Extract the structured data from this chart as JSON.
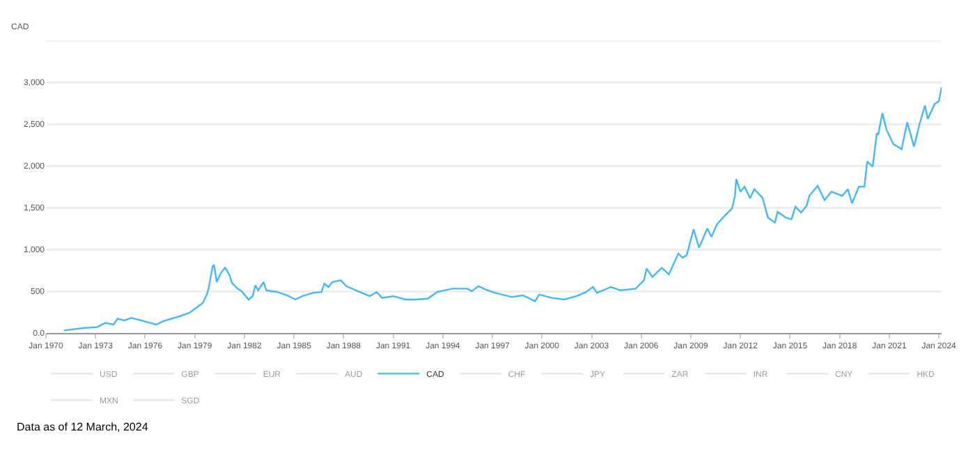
{
  "chart_data": {
    "type": "line",
    "ylabel": "CAD",
    "annotations": [
      "Data as of 12 March, 2024"
    ],
    "xlim": [
      "1970-01",
      "2024-03"
    ],
    "xticks": [
      {
        "value": "1970-01",
        "label": "Jan 1970"
      },
      {
        "value": "1973-01",
        "label": "Jan 1973"
      },
      {
        "value": "1976-01",
        "label": "Jan 1976"
      },
      {
        "value": "1979-01",
        "label": "Jan 1979"
      },
      {
        "value": "1982-01",
        "label": "Jan 1982"
      },
      {
        "value": "1985-01",
        "label": "Jan 1985"
      },
      {
        "value": "1988-01",
        "label": "Jan 1988"
      },
      {
        "value": "1991-01",
        "label": "Jan 1991"
      },
      {
        "value": "1994-01",
        "label": "Jan 1994"
      },
      {
        "value": "1997-01",
        "label": "Jan 1997"
      },
      {
        "value": "2000-01",
        "label": "Jan 2000"
      },
      {
        "value": "2003-01",
        "label": "Jan 2003"
      },
      {
        "value": "2006-01",
        "label": "Jan 2006"
      },
      {
        "value": "2009-01",
        "label": "Jan 2009"
      },
      {
        "value": "2012-01",
        "label": "Jan 2012"
      },
      {
        "value": "2015-01",
        "label": "Jan 2015"
      },
      {
        "value": "2018-01",
        "label": "Jan 2018"
      },
      {
        "value": "2021-01",
        "label": "Jan 2021"
      },
      {
        "value": "2024-01",
        "label": "Jan 2024"
      }
    ],
    "ylim": [
      0,
      3500
    ],
    "yticks": [
      {
        "value": 0,
        "label": "0.0"
      },
      500,
      {
        "value": 1000,
        "label": "1,000"
      },
      {
        "value": 1500,
        "label": "1,500"
      },
      {
        "value": 2000,
        "label": "2,000"
      },
      {
        "value": 2500,
        "label": "2,500"
      },
      {
        "value": 3000,
        "label": "3,000"
      },
      {
        "value": 3500,
        "label": null
      }
    ],
    "grid": "y",
    "legend": "bottom",
    "marker": "none",
    "line_style": "solid",
    "series": [
      {
        "name": "USD",
        "color": "#cccccc"
      },
      {
        "name": "GBP",
        "color": "#cccccc"
      },
      {
        "name": "EUR",
        "color": "#cccccc"
      },
      {
        "name": "AUD",
        "color": "#cccccc"
      },
      {
        "name": "CAD",
        "color": "#45b8f5",
        "x": [
          "1971-02",
          "1972-05",
          "1973-02",
          "1973-08",
          "1974-02",
          "1974-05",
          "1974-10",
          "1975-03",
          "1975-08",
          "1976-09",
          "1977-02",
          "1978-02",
          "1978-09",
          "1979-02",
          "1979-07",
          "1979-10",
          "1979-11",
          "1980-02",
          "1980-03",
          "1980-05",
          "1980-08",
          "1980-11",
          "1981-02",
          "1981-04",
          "1981-08",
          "1981-11",
          "1982-04",
          "1982-07",
          "1982-09",
          "1982-11",
          "1983-03",
          "1983-05",
          "1984-01",
          "1984-08",
          "1985-02",
          "1985-07",
          "1986-03",
          "1986-09",
          "1986-11",
          "1987-02",
          "1987-05",
          "1987-11",
          "1988-03",
          "1988-10",
          "1989-08",
          "1990-01",
          "1990-05",
          "1991-01",
          "1991-10",
          "1992-05",
          "1993-02",
          "1993-09",
          "1994-02",
          "1994-08",
          "1995-07",
          "1995-10",
          "1996-03",
          "1996-08",
          "1997-03",
          "1998-03",
          "1998-11",
          "1999-08",
          "1999-11",
          "2000-08",
          "2001-05",
          "2002-02",
          "2002-09",
          "2003-02",
          "2003-05",
          "2004-03",
          "2004-10",
          "2005-09",
          "2006-03",
          "2006-05",
          "2006-09",
          "2007-04",
          "2007-09",
          "2008-04",
          "2008-07",
          "2008-10",
          "2009-03",
          "2009-07",
          "2010-01",
          "2010-04",
          "2010-08",
          "2011-02",
          "2011-07",
          "2011-09",
          "2011-10",
          "2012-01",
          "2012-04",
          "2012-08",
          "2012-11",
          "2013-05",
          "2013-09",
          "2014-02",
          "2014-04",
          "2014-10",
          "2015-02",
          "2015-05",
          "2015-09",
          "2016-01",
          "2016-03",
          "2016-09",
          "2017-02",
          "2017-07",
          "2018-03",
          "2018-07",
          "2018-10",
          "2019-03",
          "2019-07",
          "2019-09",
          "2020-01",
          "2020-04",
          "2020-05",
          "2020-08",
          "2020-11",
          "2021-04",
          "2021-10",
          "2022-02",
          "2022-07",
          "2022-11",
          "2023-03",
          "2023-05",
          "2023-10",
          "2024-01",
          "2024-03"
        ],
        "values": [
          30,
          60,
          70,
          120,
          100,
          170,
          150,
          180,
          160,
          100,
          140,
          200,
          240,
          300,
          360,
          470,
          530,
          800,
          810,
          610,
          720,
          780,
          700,
          600,
          530,
          500,
          400,
          440,
          570,
          510,
          610,
          510,
          490,
          450,
          400,
          440,
          480,
          490,
          590,
          550,
          610,
          630,
          560,
          510,
          440,
          490,
          420,
          440,
          400,
          400,
          410,
          490,
          510,
          530,
          530,
          500,
          560,
          520,
          480,
          430,
          450,
          380,
          460,
          420,
          400,
          440,
          490,
          550,
          480,
          550,
          510,
          530,
          630,
          770,
          670,
          780,
          700,
          950,
          900,
          930,
          1240,
          1020,
          1250,
          1150,
          1300,
          1410,
          1490,
          1640,
          1840,
          1690,
          1750,
          1610,
          1720,
          1620,
          1380,
          1320,
          1450,
          1380,
          1360,
          1510,
          1440,
          1520,
          1640,
          1760,
          1590,
          1690,
          1640,
          1720,
          1550,
          1750,
          1750,
          2050,
          1990,
          2390,
          2370,
          2630,
          2430,
          2260,
          2200,
          2520,
          2230,
          2500,
          2720,
          2560,
          2740,
          2770,
          2940
        ]
      },
      {
        "name": "CHF",
        "color": "#cccccc"
      },
      {
        "name": "JPY",
        "color": "#cccccc"
      },
      {
        "name": "ZAR",
        "color": "#cccccc"
      },
      {
        "name": "INR",
        "color": "#cccccc"
      },
      {
        "name": "CNY",
        "color": "#cccccc"
      },
      {
        "name": "HKD",
        "color": "#cccccc"
      },
      {
        "name": "MXN",
        "color": "#cccccc"
      },
      {
        "name": "SGD",
        "color": "#cccccc"
      }
    ]
  }
}
